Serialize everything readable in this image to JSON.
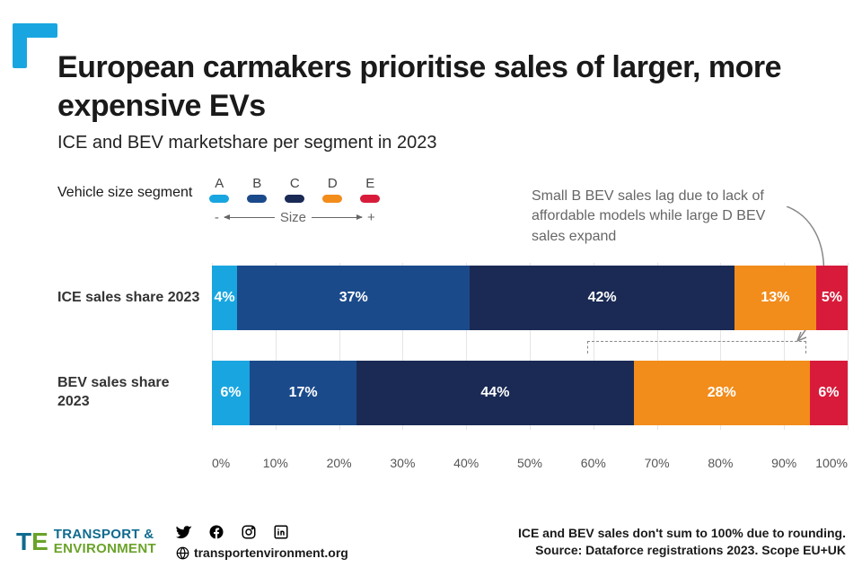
{
  "colors": {
    "logo": "#19a6e0",
    "footer_te_blue": "#0f6b8f",
    "footer_te_green": "#6aa329",
    "text_annotation": "#666666"
  },
  "title": "European carmakers prioritise sales of larger, more expensive EVs",
  "subtitle": "ICE and BEV marketshare per segment in 2023",
  "legend": {
    "label": "Vehicle size segment",
    "segments": [
      {
        "name": "A",
        "color": "#19a6e0"
      },
      {
        "name": "B",
        "color": "#1b4a8b"
      },
      {
        "name": "C",
        "color": "#1a2a55"
      },
      {
        "name": "D",
        "color": "#f28c1b"
      },
      {
        "name": "E",
        "color": "#d81b3a"
      }
    ],
    "size_axis": {
      "minus": "-",
      "label": "Size",
      "plus": "+"
    }
  },
  "annotation": "Small B BEV sales lag due to lack of affordable models while large D BEV sales expand",
  "chart": {
    "type": "stacked-bar-horizontal",
    "x_axis": {
      "min": 0,
      "max": 100,
      "step": 10,
      "suffix": "%",
      "ticks": [
        "0%",
        "10%",
        "20%",
        "30%",
        "40%",
        "50%",
        "60%",
        "70%",
        "80%",
        "90%",
        "100%"
      ]
    },
    "rows": [
      {
        "label": "ICE sales share 2023",
        "values": [
          {
            "seg": "A",
            "pct": 4,
            "label": "4%",
            "color": "#19a6e0"
          },
          {
            "seg": "B",
            "pct": 37,
            "label": "37%",
            "color": "#1b4a8b"
          },
          {
            "seg": "C",
            "pct": 42,
            "label": "42%",
            "color": "#1a2a55"
          },
          {
            "seg": "D",
            "pct": 13,
            "label": "13%",
            "color": "#f28c1b"
          },
          {
            "seg": "E",
            "pct": 5,
            "label": "5%",
            "color": "#d81b3a"
          }
        ]
      },
      {
        "label": "BEV sales share 2023",
        "values": [
          {
            "seg": "A",
            "pct": 6,
            "label": "6%",
            "color": "#19a6e0"
          },
          {
            "seg": "B",
            "pct": 17,
            "label": "17%",
            "color": "#1b4a8b"
          },
          {
            "seg": "C",
            "pct": 44,
            "label": "44%",
            "color": "#1a2a55"
          },
          {
            "seg": "D",
            "pct": 28,
            "label": "28%",
            "color": "#f28c1b"
          },
          {
            "seg": "E",
            "pct": 6,
            "label": "6%",
            "color": "#d81b3a"
          }
        ]
      }
    ]
  },
  "footer": {
    "org_line1": "TRANSPORT &",
    "org_line2": "ENVIRONMENT",
    "url": "transportenvironment.org",
    "note_line1": "ICE and BEV sales don't sum to 100% due to rounding.",
    "note_line2": "Source: Dataforce registrations 2023. Scope EU+UK"
  }
}
